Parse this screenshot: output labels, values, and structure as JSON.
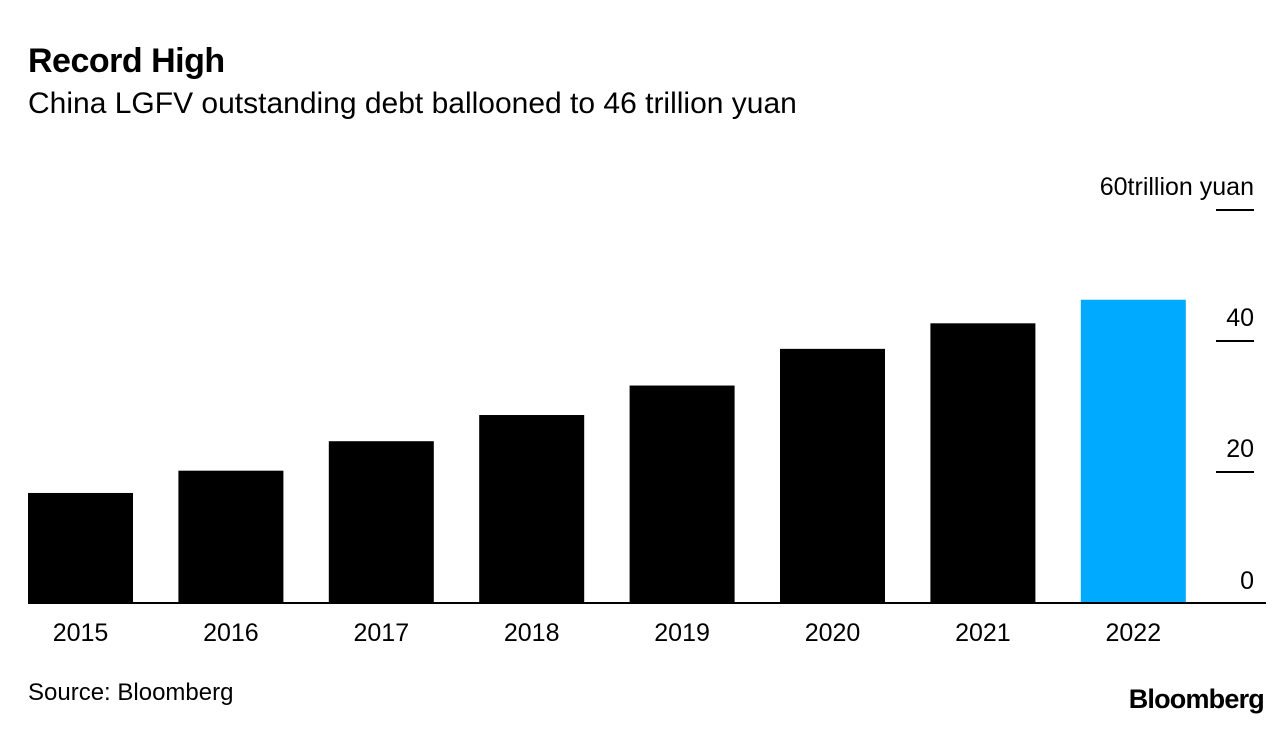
{
  "header": {
    "title": "Record High",
    "subtitle": "China LGFV outstanding debt ballooned to 46 trillion yuan"
  },
  "chart_data": {
    "type": "bar",
    "title": "Record High",
    "subtitle": "China LGFV outstanding debt ballooned to 46 trillion yuan",
    "categories": [
      "2015",
      "2016",
      "2017",
      "2018",
      "2019",
      "2020",
      "2021",
      "2022"
    ],
    "values": [
      16.8,
      20.2,
      24.7,
      28.7,
      33.2,
      38.8,
      42.7,
      46.3
    ],
    "ylim": [
      0,
      60
    ],
    "yticks": [
      0,
      20,
      40,
      60
    ],
    "ytick_labels": [
      "0",
      "20",
      "40",
      "60"
    ],
    "y_unit_label": "trillion yuan",
    "axis_position": "right",
    "grid": false,
    "colors": {
      "default_bar": "#000000",
      "highlight_bar": "#00aaff",
      "highlight_category": "2022",
      "axis": "#000000"
    }
  },
  "footer": {
    "source": "Source: Bloomberg",
    "brand": "Bloomberg"
  }
}
